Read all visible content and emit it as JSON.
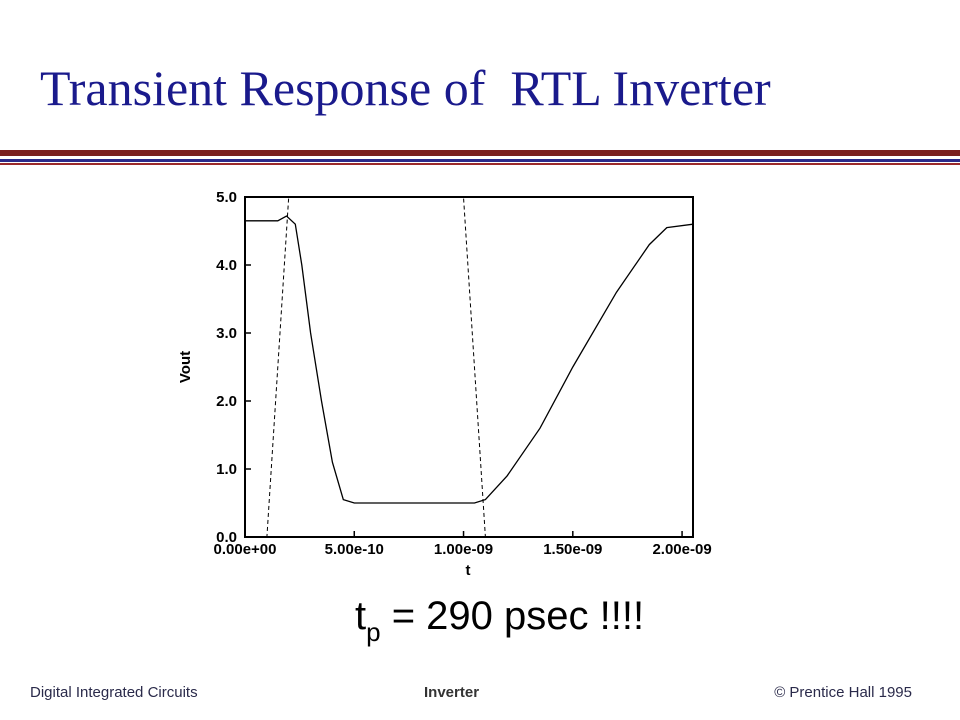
{
  "slide": {
    "title": "Transient Response of  RTL Inverter"
  },
  "annotation": {
    "prefix": "t",
    "subscript": "p",
    "suffix": " = 290 psec !!!!"
  },
  "footer": {
    "left": "Digital Integrated Circuits",
    "center": "Inverter",
    "right": "© Prentice Hall 1995"
  },
  "chart_data": {
    "type": "line",
    "xlabel": "t",
    "ylabel": "Vout",
    "xlim": [
      0,
      2.05e-09
    ],
    "ylim": [
      0,
      5.0
    ],
    "x_tick_values": [
      0,
      5e-10,
      1e-09,
      1.5e-09,
      2e-09
    ],
    "x_tick_labels": [
      "0.00e+00",
      "5.00e-10",
      "1.00e-09",
      "1.50e-09",
      "2.00e-09"
    ],
    "y_tick_values": [
      0,
      1,
      2,
      3,
      4,
      5
    ],
    "y_tick_labels": [
      "0.0",
      "1.0",
      "2.0",
      "3.0",
      "4.0",
      "5.0"
    ],
    "grid": false,
    "series": [
      {
        "style": "solid",
        "x": [
          0,
          1.5e-10,
          1.9e-10,
          2.3e-10,
          2.6e-10,
          3e-10,
          3.5e-10,
          4e-10,
          4.5e-10,
          5e-10,
          1.05e-09,
          1.1e-09,
          1.2e-09,
          1.35e-09,
          1.5e-09,
          1.7e-09,
          1.85e-09,
          1.93e-09,
          2.05e-09
        ],
        "y": [
          4.65,
          4.65,
          4.72,
          4.6,
          4.0,
          3.0,
          2.0,
          1.1,
          0.55,
          0.5,
          0.5,
          0.55,
          0.9,
          1.6,
          2.5,
          3.6,
          4.3,
          4.55,
          4.6
        ]
      },
      {
        "style": "dashed",
        "x": [
          0,
          1e-10,
          2e-10,
          1e-09,
          1.1e-09,
          2.05e-09
        ],
        "y": [
          0,
          0,
          5.0,
          5.0,
          0,
          0
        ]
      }
    ]
  }
}
